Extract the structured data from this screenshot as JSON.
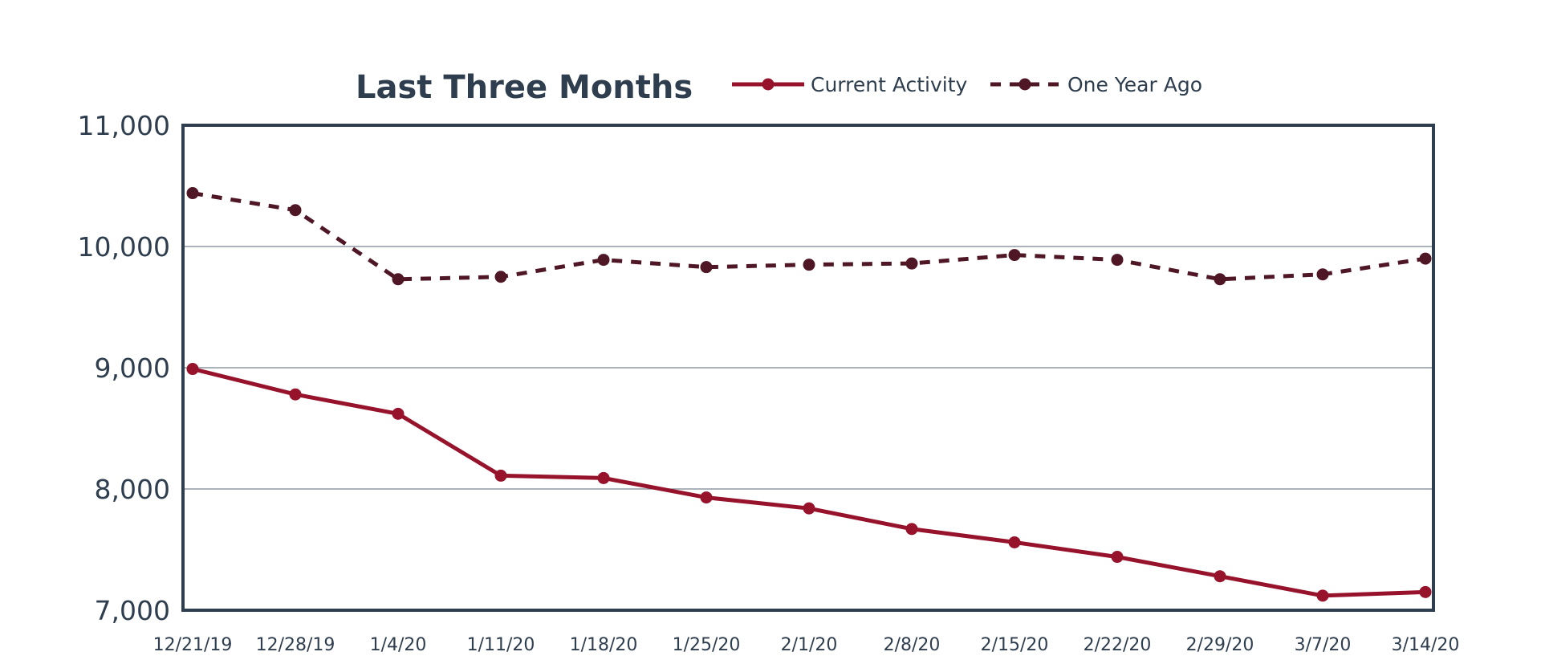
{
  "chart_data": {
    "type": "line",
    "title": "Last Three Months",
    "xlabel": "",
    "ylabel": "",
    "categories": [
      "12/21/19",
      "12/28/19",
      "1/4/20",
      "1/11/20",
      "1/18/20",
      "1/25/20",
      "2/1/20",
      "2/8/20",
      "2/15/20",
      "2/22/20",
      "2/29/20",
      "3/7/20",
      "3/14/20"
    ],
    "ylim": [
      7000,
      11000
    ],
    "yticks": [
      "7,000",
      "8,000",
      "9,000",
      "10,000",
      "11,000"
    ],
    "ytick_values": [
      7000,
      8000,
      9000,
      10000,
      11000
    ],
    "grid": true,
    "legend": "top",
    "series": [
      {
        "name": "Current Activity",
        "color": "#97122b",
        "style": "solid",
        "values": [
          8990,
          8780,
          8620,
          8110,
          8090,
          7930,
          7840,
          7670,
          7560,
          7440,
          7280,
          7120,
          7150
        ]
      },
      {
        "name": "One Year Ago",
        "color": "#4f1726",
        "style": "dashed",
        "values": [
          10440,
          10300,
          9730,
          9750,
          9890,
          9830,
          9850,
          9860,
          9930,
          9890,
          9730,
          9770,
          9900
        ]
      }
    ]
  }
}
